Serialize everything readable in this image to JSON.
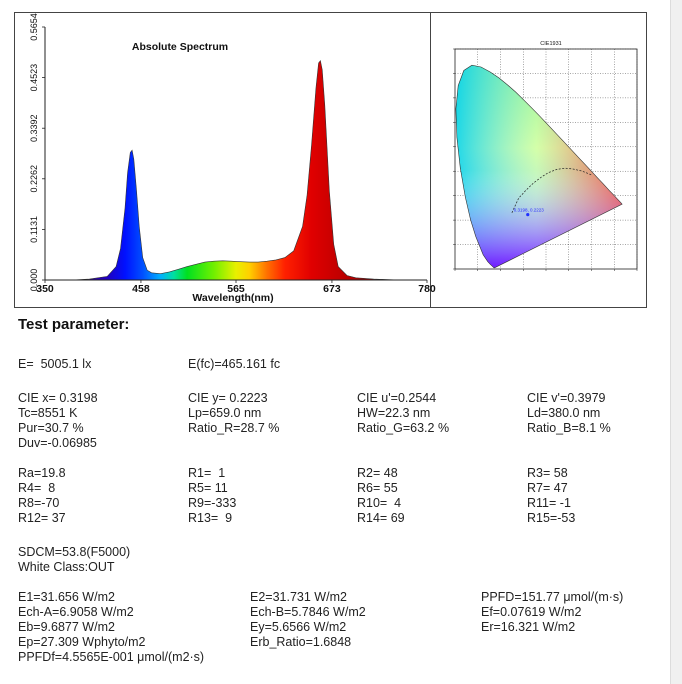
{
  "chart_data": [
    {
      "type": "area",
      "title": "Absolute Spectrum",
      "xlabel": "Wavelength(nm)",
      "ylabel": "",
      "xlim": [
        350,
        780
      ],
      "ylim": [
        0,
        0.5654
      ],
      "x_ticks": [
        "350",
        "458",
        "565",
        "673",
        "780"
      ],
      "y_ticks": [
        "0.000",
        "0.1131",
        "0.2262",
        "0.3392",
        "0.4523",
        "0.5654"
      ],
      "grid": false,
      "legend": "none",
      "series": [
        {
          "x": [
            380,
            400,
            420,
            430,
            435,
            440,
            443,
            446,
            448,
            450,
            453,
            456,
            460,
            465,
            470,
            480,
            490,
            500,
            510,
            520,
            530,
            540,
            550,
            560,
            570,
            580,
            590,
            600,
            610,
            620,
            630,
            640,
            645,
            650,
            655,
            658,
            660,
            662,
            665,
            670,
            675,
            680,
            690,
            700,
            720,
            750,
            780
          ],
          "y": [
            0.0,
            0.002,
            0.008,
            0.03,
            0.07,
            0.16,
            0.24,
            0.285,
            0.29,
            0.27,
            0.2,
            0.12,
            0.05,
            0.022,
            0.016,
            0.014,
            0.018,
            0.024,
            0.03,
            0.035,
            0.04,
            0.042,
            0.043,
            0.042,
            0.041,
            0.04,
            0.04,
            0.042,
            0.045,
            0.05,
            0.065,
            0.12,
            0.19,
            0.3,
            0.43,
            0.485,
            0.49,
            0.47,
            0.39,
            0.2,
            0.08,
            0.03,
            0.01,
            0.005,
            0.002,
            0.0,
            0.0
          ]
        }
      ]
    },
    {
      "type": "scatter",
      "title": "CIE1931",
      "xlabel": "",
      "ylabel": "",
      "xlim": [
        0,
        0.8
      ],
      "ylim": [
        0,
        0.9
      ],
      "point": {
        "x": 0.3198,
        "y": 0.2223,
        "label": "0.3198, 0.2223"
      }
    }
  ],
  "params": {
    "title": "Test parameter:",
    "r1": [
      "E=  5005.1 lx",
      "E(fc)=465.161 fc"
    ],
    "r2": [
      "CIE x= 0.3198",
      "CIE y= 0.2223",
      "CIE u'=0.2544",
      "CIE v'=0.3979"
    ],
    "r3": [
      "Tc=8551 K",
      "Lp=659.0 nm",
      "HW=22.3 nm",
      "Ld=380.0 nm"
    ],
    "r4": [
      "Pur=30.7 %",
      "Ratio_R=28.7 %",
      "Ratio_G=63.2 %",
      "Ratio_B=8.1 %"
    ],
    "r5": [
      "Duv=-0.06985"
    ],
    "r6": [
      "Ra=19.8",
      "R1=  1",
      "R2= 48",
      "R3= 58"
    ],
    "r7": [
      "R4=  8",
      "R5= 11",
      "R6= 55",
      "R7= 47"
    ],
    "r8": [
      "R8=-70",
      "R9=-333",
      "R10=  4",
      "R11= -1"
    ],
    "r9": [
      "R12= 37",
      "R13=  9",
      "R14= 69",
      "R15=-53"
    ],
    "r10": [
      "SDCM=53.8(F5000)"
    ],
    "r11": [
      "White Class:OUT"
    ],
    "r12": [
      "E1=31.656 W/m2",
      "E2=31.731 W/m2",
      "PPFD=151.77 μmol/(m·s)"
    ],
    "r13": [
      "Ech-A=6.9058 W/m2",
      "Ech-B=5.7846 W/m2",
      "Ef=0.07619 W/m2"
    ],
    "r14": [
      "Eb=9.6877 W/m2",
      "Ey=5.6566 W/m2",
      "Er=16.321 W/m2"
    ],
    "r15": [
      "Ep=27.309 Wphyto/m2",
      "Erb_Ratio=1.6848"
    ],
    "r16": [
      "PPFDf=4.5565E-001 μmol/(m2·s)"
    ]
  }
}
